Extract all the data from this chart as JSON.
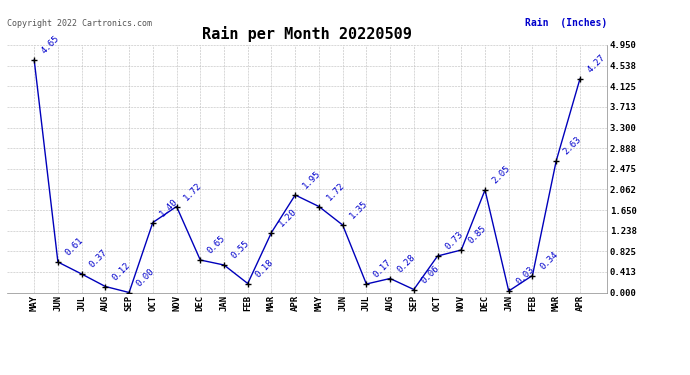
{
  "title": "Rain per Month 20220509",
  "copyright_text": "Copyright 2022 Cartronics.com",
  "legend_label": "Rain  (Inches)",
  "months": [
    "MAY",
    "JUN",
    "JUL",
    "AUG",
    "SEP",
    "OCT",
    "NOV",
    "DEC",
    "JAN",
    "FEB",
    "MAR",
    "APR",
    "MAY",
    "JUN",
    "JUL",
    "AUG",
    "SEP",
    "OCT",
    "NOV",
    "DEC",
    "JAN",
    "FEB",
    "MAR",
    "APR"
  ],
  "values": [
    4.65,
    0.61,
    0.37,
    0.12,
    0.0,
    1.4,
    1.72,
    0.65,
    0.55,
    0.18,
    1.2,
    1.95,
    1.72,
    1.35,
    0.17,
    0.28,
    0.06,
    0.73,
    0.85,
    2.05,
    0.03,
    0.34,
    2.63,
    4.27
  ],
  "line_color": "#0000bb",
  "marker_color": "#000000",
  "label_color": "#0000cc",
  "background_color": "#ffffff",
  "grid_color": "#bbbbbb",
  "yticks": [
    0.0,
    0.413,
    0.825,
    1.238,
    1.65,
    2.062,
    2.475,
    2.888,
    3.3,
    3.713,
    4.125,
    4.538,
    4.95
  ],
  "ymax": 4.95,
  "ymin": 0.0,
  "title_fontsize": 11,
  "label_fontsize": 6.5,
  "axis_fontsize": 6.5,
  "copyright_fontsize": 6
}
